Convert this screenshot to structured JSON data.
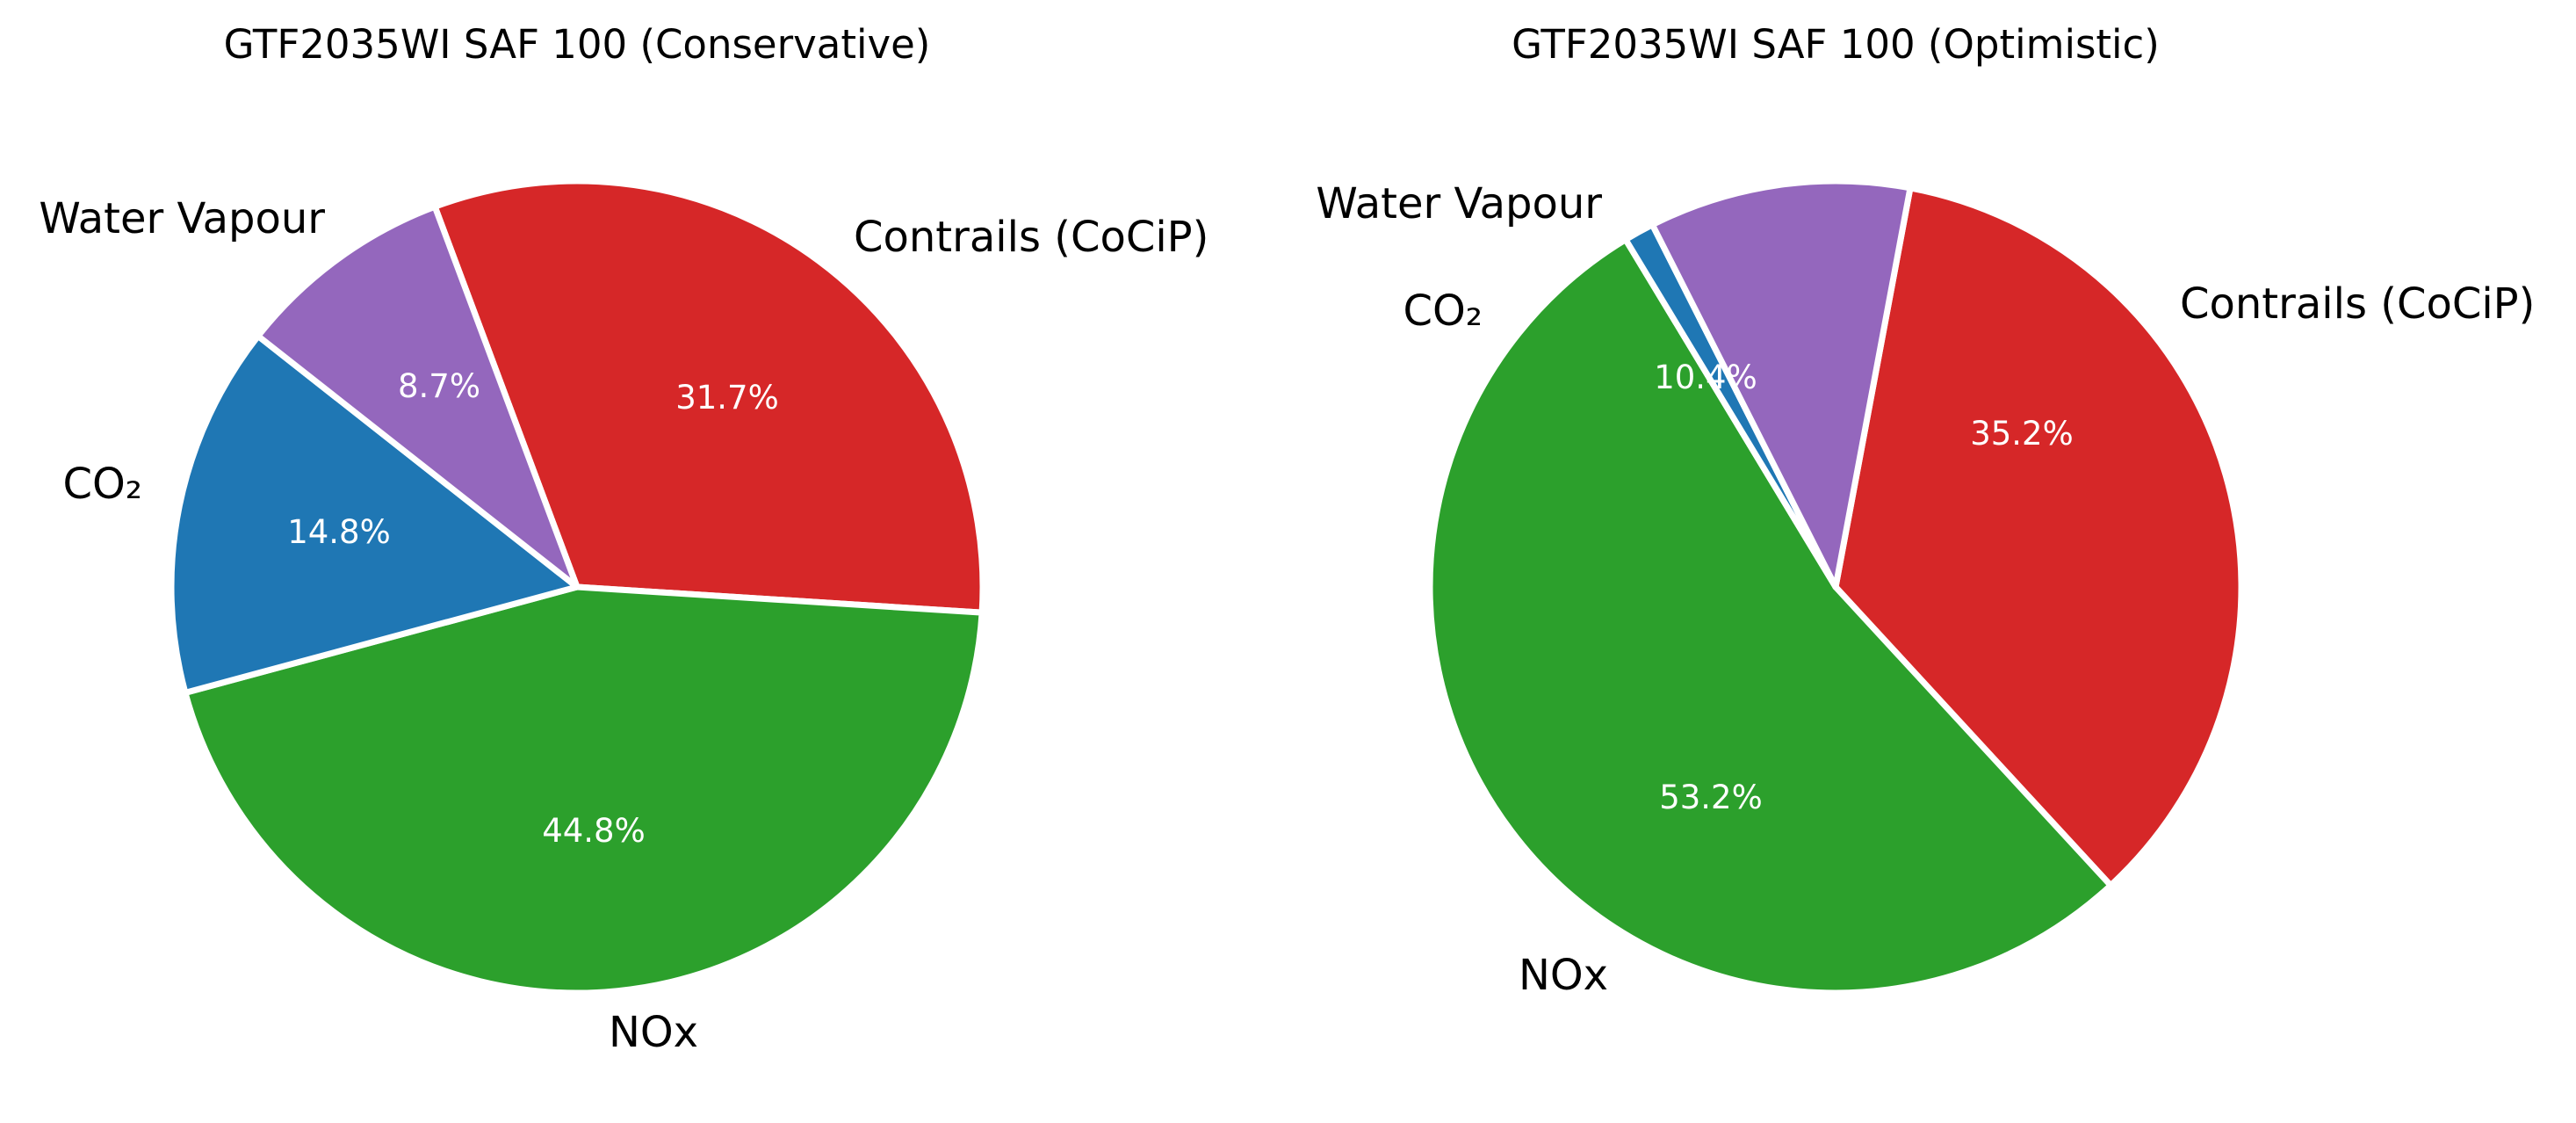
{
  "chart_data": [
    {
      "type": "pie",
      "title": "GTF2035WI SAF 100 (Conservative)",
      "slices": [
        {
          "label": "Contrails (CoCiP)",
          "value": 31.7,
          "pct_label": "31.7%",
          "color": "#d62728"
        },
        {
          "label": "NOx",
          "value": 44.8,
          "pct_label": "44.8%",
          "color": "#2ca02c"
        },
        {
          "label": "CO₂",
          "value": 14.8,
          "pct_label": "14.8%",
          "color": "#1f77b4"
        },
        {
          "label": "Water Vapour",
          "value": 8.7,
          "pct_label": "8.7%",
          "color": "#9467bd"
        }
      ]
    },
    {
      "type": "pie",
      "title": "GTF2035WI SAF 100 (Optimistic)",
      "slices": [
        {
          "label": "Contrails (CoCiP)",
          "value": 35.2,
          "pct_label": "35.2%",
          "color": "#d62728"
        },
        {
          "label": "NOx",
          "value": 53.2,
          "pct_label": "53.2%",
          "color": "#2ca02c"
        },
        {
          "label": "CO₂",
          "value": 1.2,
          "pct_label": "",
          "color": "#1f77b4"
        },
        {
          "label": "Water Vapour",
          "value": 10.4,
          "pct_label": "10.4%",
          "color": "#9467bd"
        }
      ]
    }
  ]
}
